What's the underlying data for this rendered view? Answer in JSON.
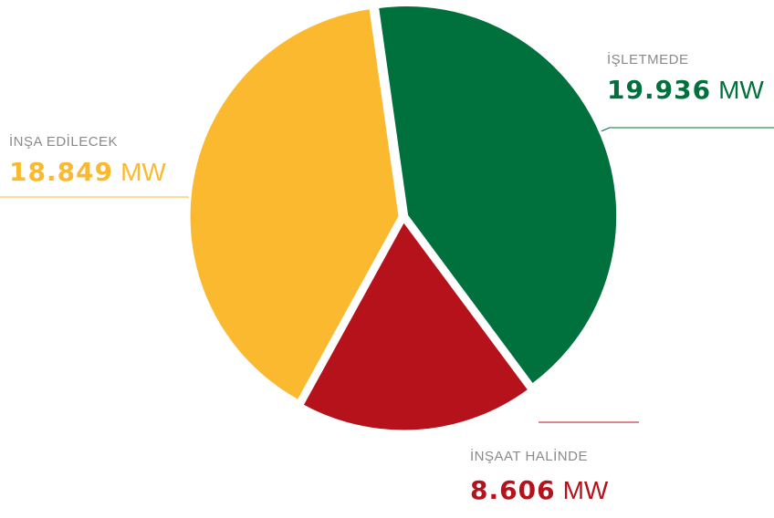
{
  "chart_data": {
    "type": "pie",
    "categories": [
      "İŞLETMEDE",
      "İNŞAAT HALİNDE",
      "İNŞA EDİLECEK"
    ],
    "values": [
      19936,
      8606,
      18849
    ],
    "value_labels": [
      "19.936",
      "8.606",
      "18.849"
    ],
    "unit": "MW",
    "colors": [
      "#00703c",
      "#b5121b",
      "#fbb92f"
    ]
  }
}
